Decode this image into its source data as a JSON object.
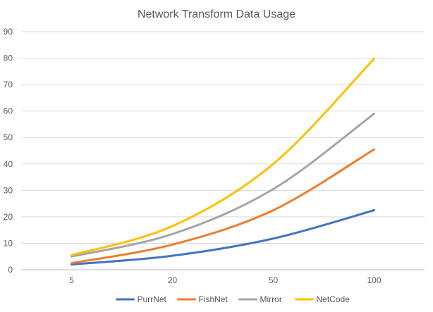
{
  "chart_data": {
    "type": "line",
    "title": "Network Transform Data Usage",
    "xlabel": "",
    "ylabel": "",
    "categories": [
      "5",
      "20",
      "50",
      "100"
    ],
    "x": [
      5,
      20,
      50,
      100
    ],
    "ylim": [
      0,
      90
    ],
    "yticks": [
      0,
      10,
      20,
      30,
      40,
      50,
      60,
      70,
      80,
      90
    ],
    "grid": true,
    "legend": "bottom",
    "smooth": true,
    "series": [
      {
        "name": "PurrNet",
        "color": "#4472C4",
        "values": [
          2,
          5.3,
          11.8,
          22.5
        ]
      },
      {
        "name": "FishNet",
        "color": "#ED7D31",
        "values": [
          2.5,
          9.5,
          22.5,
          45.5
        ]
      },
      {
        "name": "Mirror",
        "color": "#A5A5A5",
        "values": [
          5,
          13.5,
          30.5,
          59
        ]
      },
      {
        "name": "NetCode",
        "color": "#FFC000",
        "values": [
          5.5,
          16.5,
          40,
          79.8
        ]
      }
    ]
  }
}
